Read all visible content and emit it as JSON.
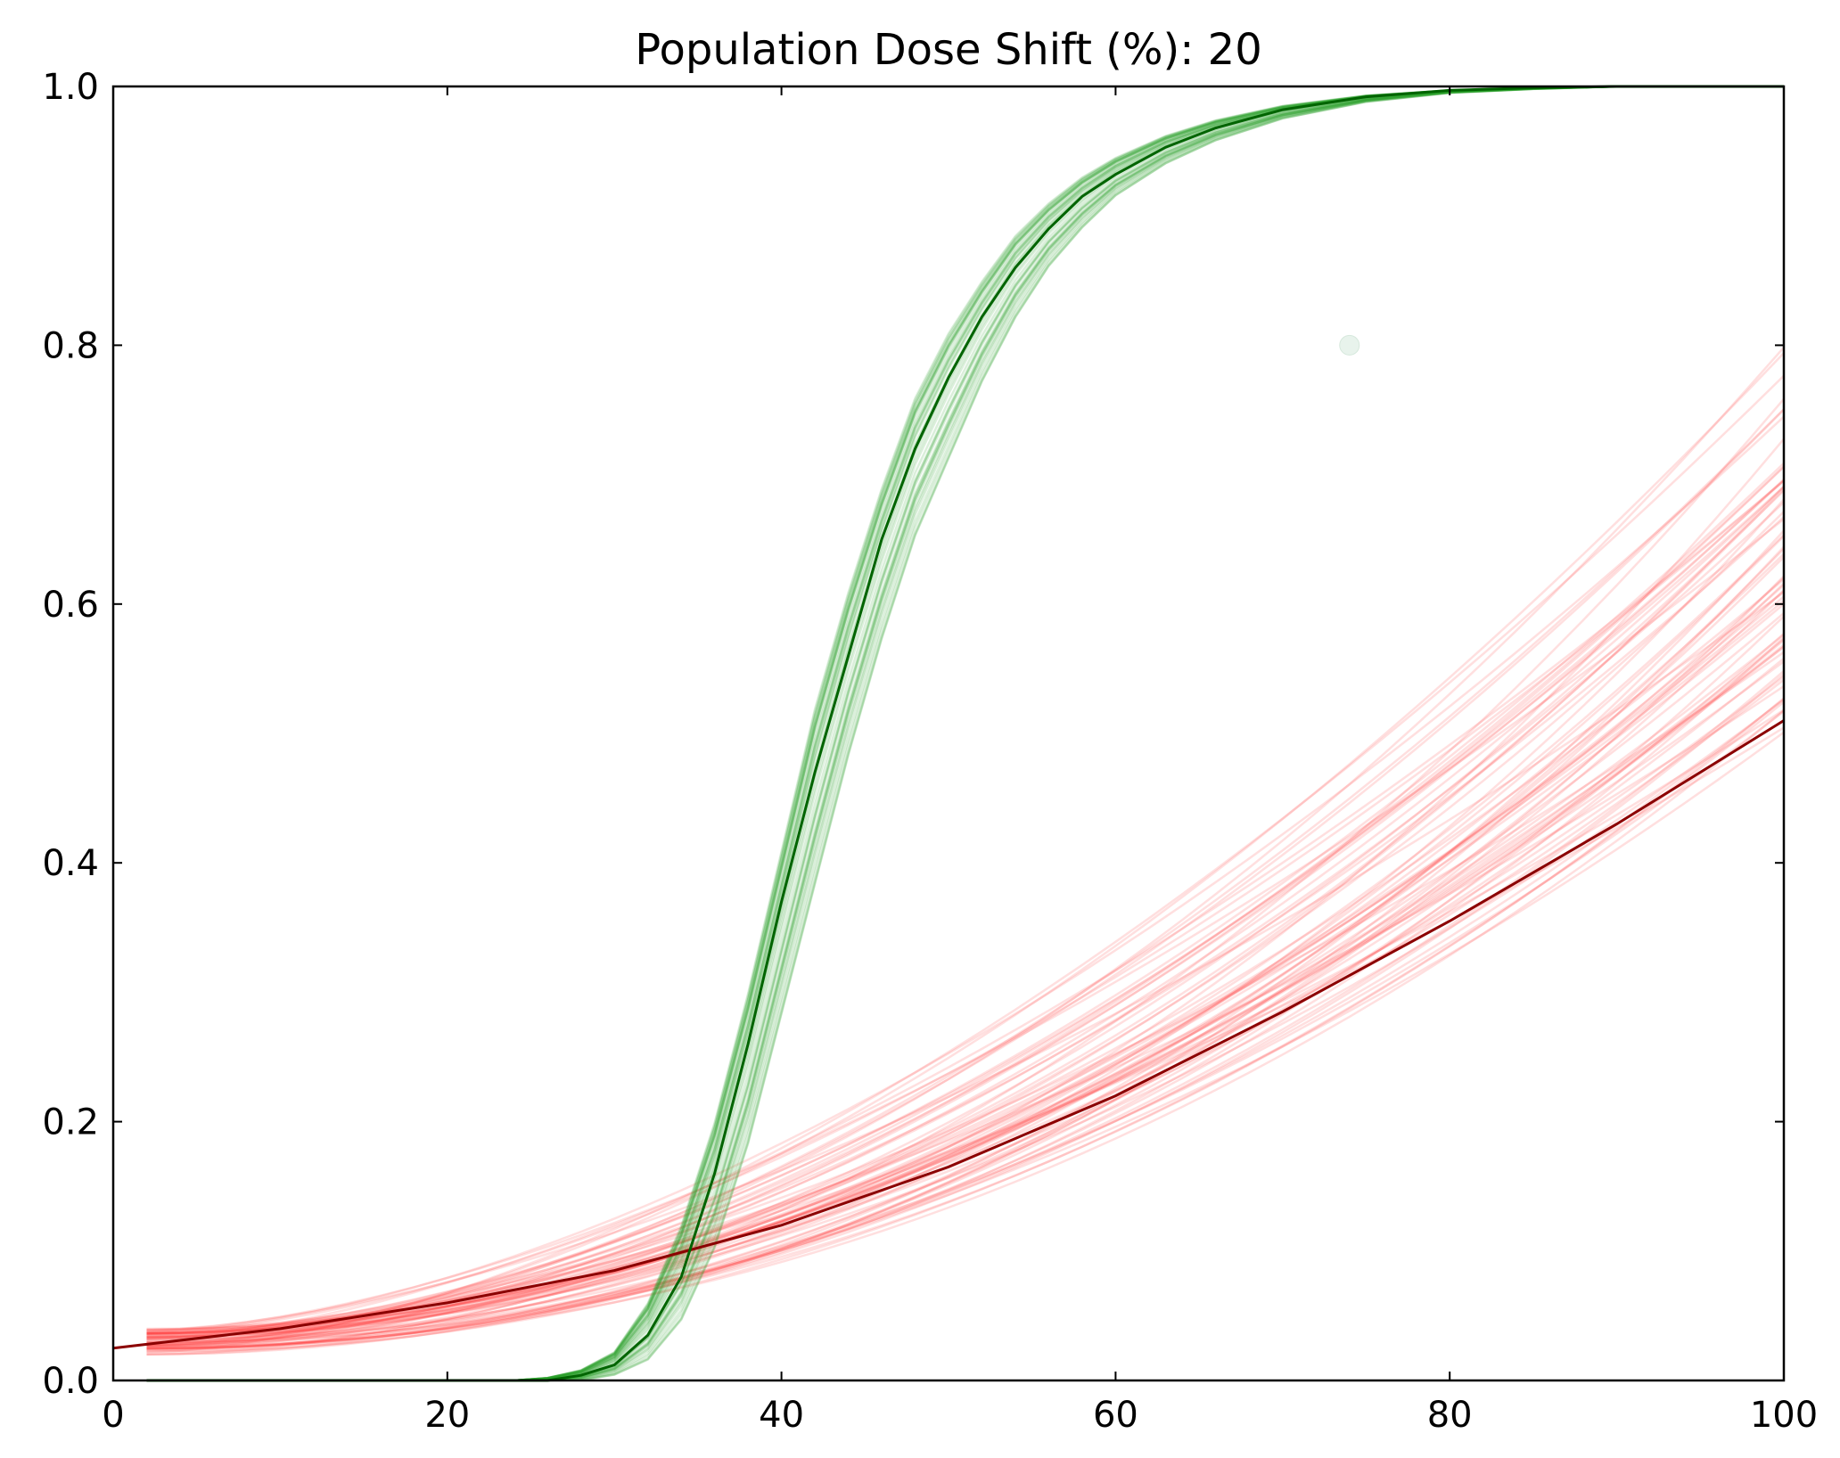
{
  "chart_data": {
    "type": "line",
    "title": "Population Dose Shift (%): 20",
    "xlabel": "",
    "ylabel": "",
    "xlim": [
      0,
      100
    ],
    "ylim": [
      0.0,
      1.0
    ],
    "x_ticks": [
      "0",
      "20",
      "40",
      "60",
      "80",
      "100"
    ],
    "y_ticks": [
      "0.0",
      "0.2",
      "0.4",
      "0.6",
      "0.8",
      "1.0"
    ],
    "grid": false,
    "legend": "none",
    "colors": {
      "green_main": "#006400",
      "green_band": "#2ca02c",
      "red_main": "#8b0000",
      "red_band": "#ff3b3b",
      "marker": "#e8f3ec"
    },
    "series": [
      {
        "role": "main-green",
        "x": [
          2,
          20,
          25,
          26,
          28,
          30,
          32,
          34,
          36,
          38,
          40,
          42,
          44,
          46,
          48,
          50,
          52,
          54,
          56,
          58,
          60,
          63,
          66,
          70,
          75,
          80,
          85,
          90,
          100
        ],
        "y": [
          0.0,
          0.0,
          0.0,
          0.0,
          0.004,
          0.012,
          0.035,
          0.08,
          0.16,
          0.26,
          0.37,
          0.47,
          0.56,
          0.65,
          0.72,
          0.775,
          0.822,
          0.86,
          0.89,
          0.915,
          0.932,
          0.953,
          0.968,
          0.982,
          0.992,
          0.997,
          0.999,
          1.0,
          1.0
        ]
      },
      {
        "role": "main-red",
        "x": [
          0,
          10,
          20,
          30,
          40,
          50,
          60,
          70,
          80,
          90,
          100
        ],
        "y": [
          0.025,
          0.04,
          0.06,
          0.085,
          0.12,
          0.165,
          0.22,
          0.285,
          0.355,
          0.43,
          0.51
        ]
      },
      {
        "role": "green-samples",
        "x": [
          2,
          24,
          26,
          28,
          30,
          32,
          34,
          36,
          38,
          40,
          42,
          44,
          46,
          48,
          50,
          52,
          54,
          56,
          58,
          60,
          63,
          66,
          70,
          75,
          80,
          85,
          90,
          100
        ],
        "y_low": [
          0.0,
          0.0,
          0.0,
          0.0,
          0.004,
          0.015,
          0.045,
          0.1,
          0.18,
          0.28,
          0.38,
          0.48,
          0.57,
          0.65,
          0.71,
          0.77,
          0.82,
          0.86,
          0.89,
          0.915,
          0.94,
          0.958,
          0.975,
          0.988,
          0.995,
          0.998,
          1.0,
          1.0
        ],
        "y_high": [
          0.0,
          0.0,
          0.002,
          0.008,
          0.022,
          0.06,
          0.12,
          0.2,
          0.3,
          0.41,
          0.52,
          0.61,
          0.69,
          0.76,
          0.81,
          0.85,
          0.885,
          0.91,
          0.93,
          0.945,
          0.962,
          0.974,
          0.985,
          0.993,
          0.997,
          0.999,
          1.0,
          1.0
        ],
        "count": 45
      },
      {
        "role": "red-samples",
        "x_range": [
          2,
          100
        ],
        "y_start_range": [
          0.02,
          0.04
        ],
        "y_end_range": [
          0.5,
          0.8
        ],
        "count": 70
      }
    ],
    "annotations": [
      {
        "type": "marker",
        "x": 74,
        "y": 0.8
      }
    ]
  }
}
